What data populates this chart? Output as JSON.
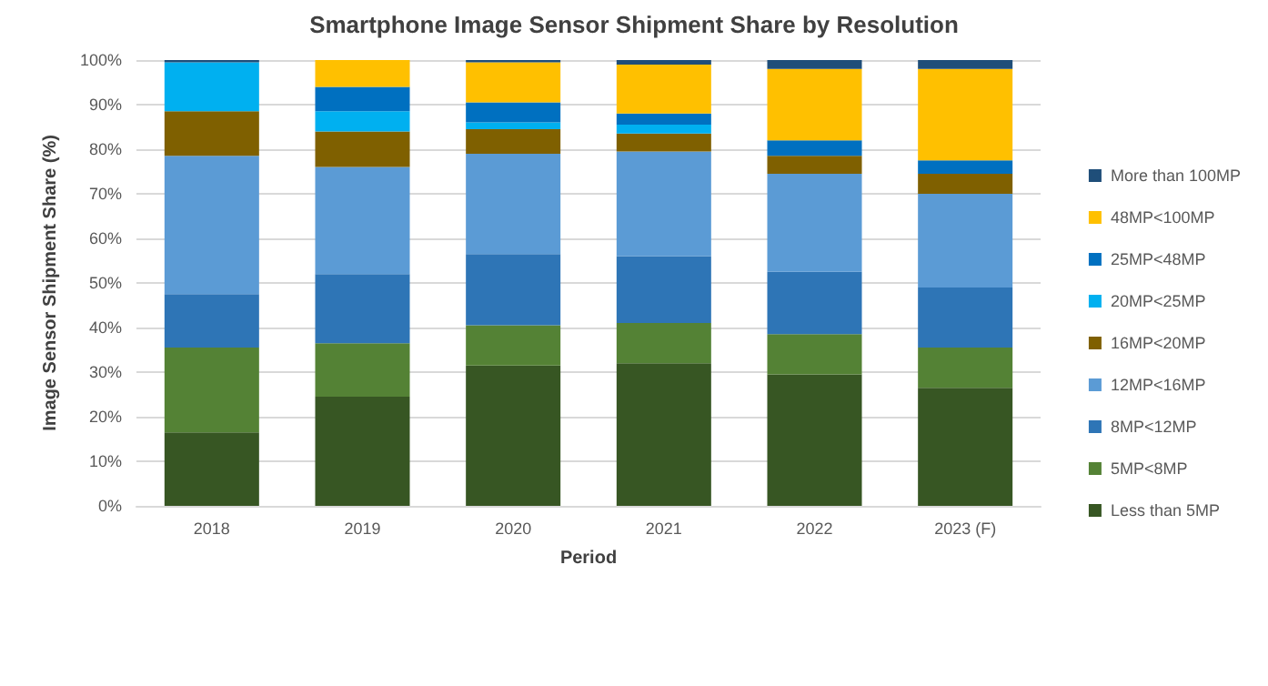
{
  "chart_data": {
    "type": "bar",
    "title": "Smartphone Image Sensor Shipment Share by Resolution",
    "xlabel": "Period",
    "ylabel": "Image Sensor Shipment Share (%)",
    "categories": [
      "2018",
      "2019",
      "2020",
      "2021",
      "2022",
      "2023 (F)"
    ],
    "stacked": true,
    "grid": "y",
    "legend": "right",
    "ylim": [
      0,
      100
    ],
    "yticks": [
      {
        "value": 0,
        "label": "0%"
      },
      {
        "value": 10,
        "label": "10%"
      },
      {
        "value": 20,
        "label": "20%"
      },
      {
        "value": 30,
        "label": "30%"
      },
      {
        "value": 40,
        "label": "40%"
      },
      {
        "value": 50,
        "label": "50%"
      },
      {
        "value": 60,
        "label": "60%"
      },
      {
        "value": 70,
        "label": "70%"
      },
      {
        "value": 80,
        "label": "80%"
      },
      {
        "value": 90,
        "label": "90%"
      },
      {
        "value": 100,
        "label": "100%"
      }
    ],
    "series": [
      {
        "name": "Less than 5MP",
        "color": "#375623",
        "values": [
          16.5,
          24.5,
          31.5,
          32,
          29.5,
          26.5
        ]
      },
      {
        "name": "5MP<8MP",
        "color": "#548235",
        "values": [
          19,
          12,
          9,
          9,
          9,
          9
        ]
      },
      {
        "name": "8MP<12MP",
        "color": "#2e75b6",
        "values": [
          12,
          15.5,
          16,
          15,
          14,
          13.5
        ]
      },
      {
        "name": "12MP<16MP",
        "color": "#5b9bd5",
        "values": [
          31,
          24,
          22.5,
          23.5,
          22,
          21
        ]
      },
      {
        "name": "16MP<20MP",
        "color": "#7f6000",
        "values": [
          10,
          8,
          5.5,
          4,
          4,
          4.5
        ]
      },
      {
        "name": "20MP<25MP",
        "color": "#00b0f0",
        "values": [
          11,
          4.5,
          1.5,
          2,
          0,
          0
        ]
      },
      {
        "name": "25MP<48MP",
        "color": "#0070c0",
        "values": [
          0,
          5.5,
          4.5,
          2.5,
          3.5,
          3
        ]
      },
      {
        "name": "48MP<100MP",
        "color": "#ffc000",
        "values": [
          0,
          6,
          9,
          11,
          16,
          20.5
        ]
      },
      {
        "name": "More than 100MP",
        "color": "#1f4e79",
        "values": [
          0.5,
          0,
          0.5,
          1,
          2,
          2
        ]
      }
    ]
  }
}
